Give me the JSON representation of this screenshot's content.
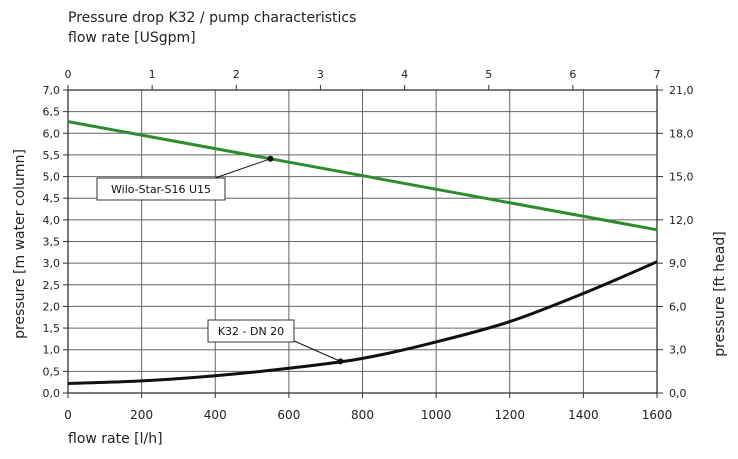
{
  "chart_data": {
    "type": "line",
    "title": "Pressure drop K32 / pump characteristics",
    "top_axis": {
      "label": "flow rate [USgpm]",
      "ticks": [
        "0",
        "1",
        "2",
        "3",
        "4",
        "5",
        "6",
        "7"
      ],
      "range": [
        0,
        7
      ]
    },
    "x_axis": {
      "label": "flow rate [l/h]",
      "ticks": [
        "0",
        "200",
        "400",
        "600",
        "800",
        "1000",
        "1200",
        "1400",
        "1600"
      ],
      "range": [
        0,
        1600
      ]
    },
    "y_axis": {
      "label": "pressure [m water column]",
      "ticks": [
        "0,0",
        "0,5",
        "1,0",
        "1,5",
        "2,0",
        "2,5",
        "3,0",
        "3,5",
        "4,0",
        "4,5",
        "5,0",
        "5,5",
        "6,0",
        "6,5",
        "7,0"
      ],
      "range": [
        0,
        7
      ]
    },
    "y2_axis": {
      "label": "pressure [ft head]",
      "ticks": [
        "0,0",
        "3,0",
        "6,0",
        "9,0",
        "12,0",
        "15,0",
        "18,0",
        "21,0"
      ],
      "range": [
        0,
        21
      ]
    },
    "grid": true,
    "series": [
      {
        "name": "Wilo-Star-S16 U15",
        "color": "#2e8b2e",
        "x": [
          0,
          1600
        ],
        "y": [
          6.27,
          3.77
        ]
      },
      {
        "name": "K32 - DN 20",
        "color": "#111111",
        "x": [
          0,
          200,
          400,
          600,
          800,
          1000,
          1200,
          1400,
          1600
        ],
        "y": [
          0.22,
          0.28,
          0.4,
          0.57,
          0.8,
          1.18,
          1.65,
          2.3,
          3.03
        ]
      }
    ],
    "annotations": [
      {
        "text": "Wilo-Star-S16 U15",
        "series": 0,
        "marker_x": 550
      },
      {
        "text": "K32 - DN 20",
        "series": 1,
        "marker_x": 740
      }
    ]
  }
}
